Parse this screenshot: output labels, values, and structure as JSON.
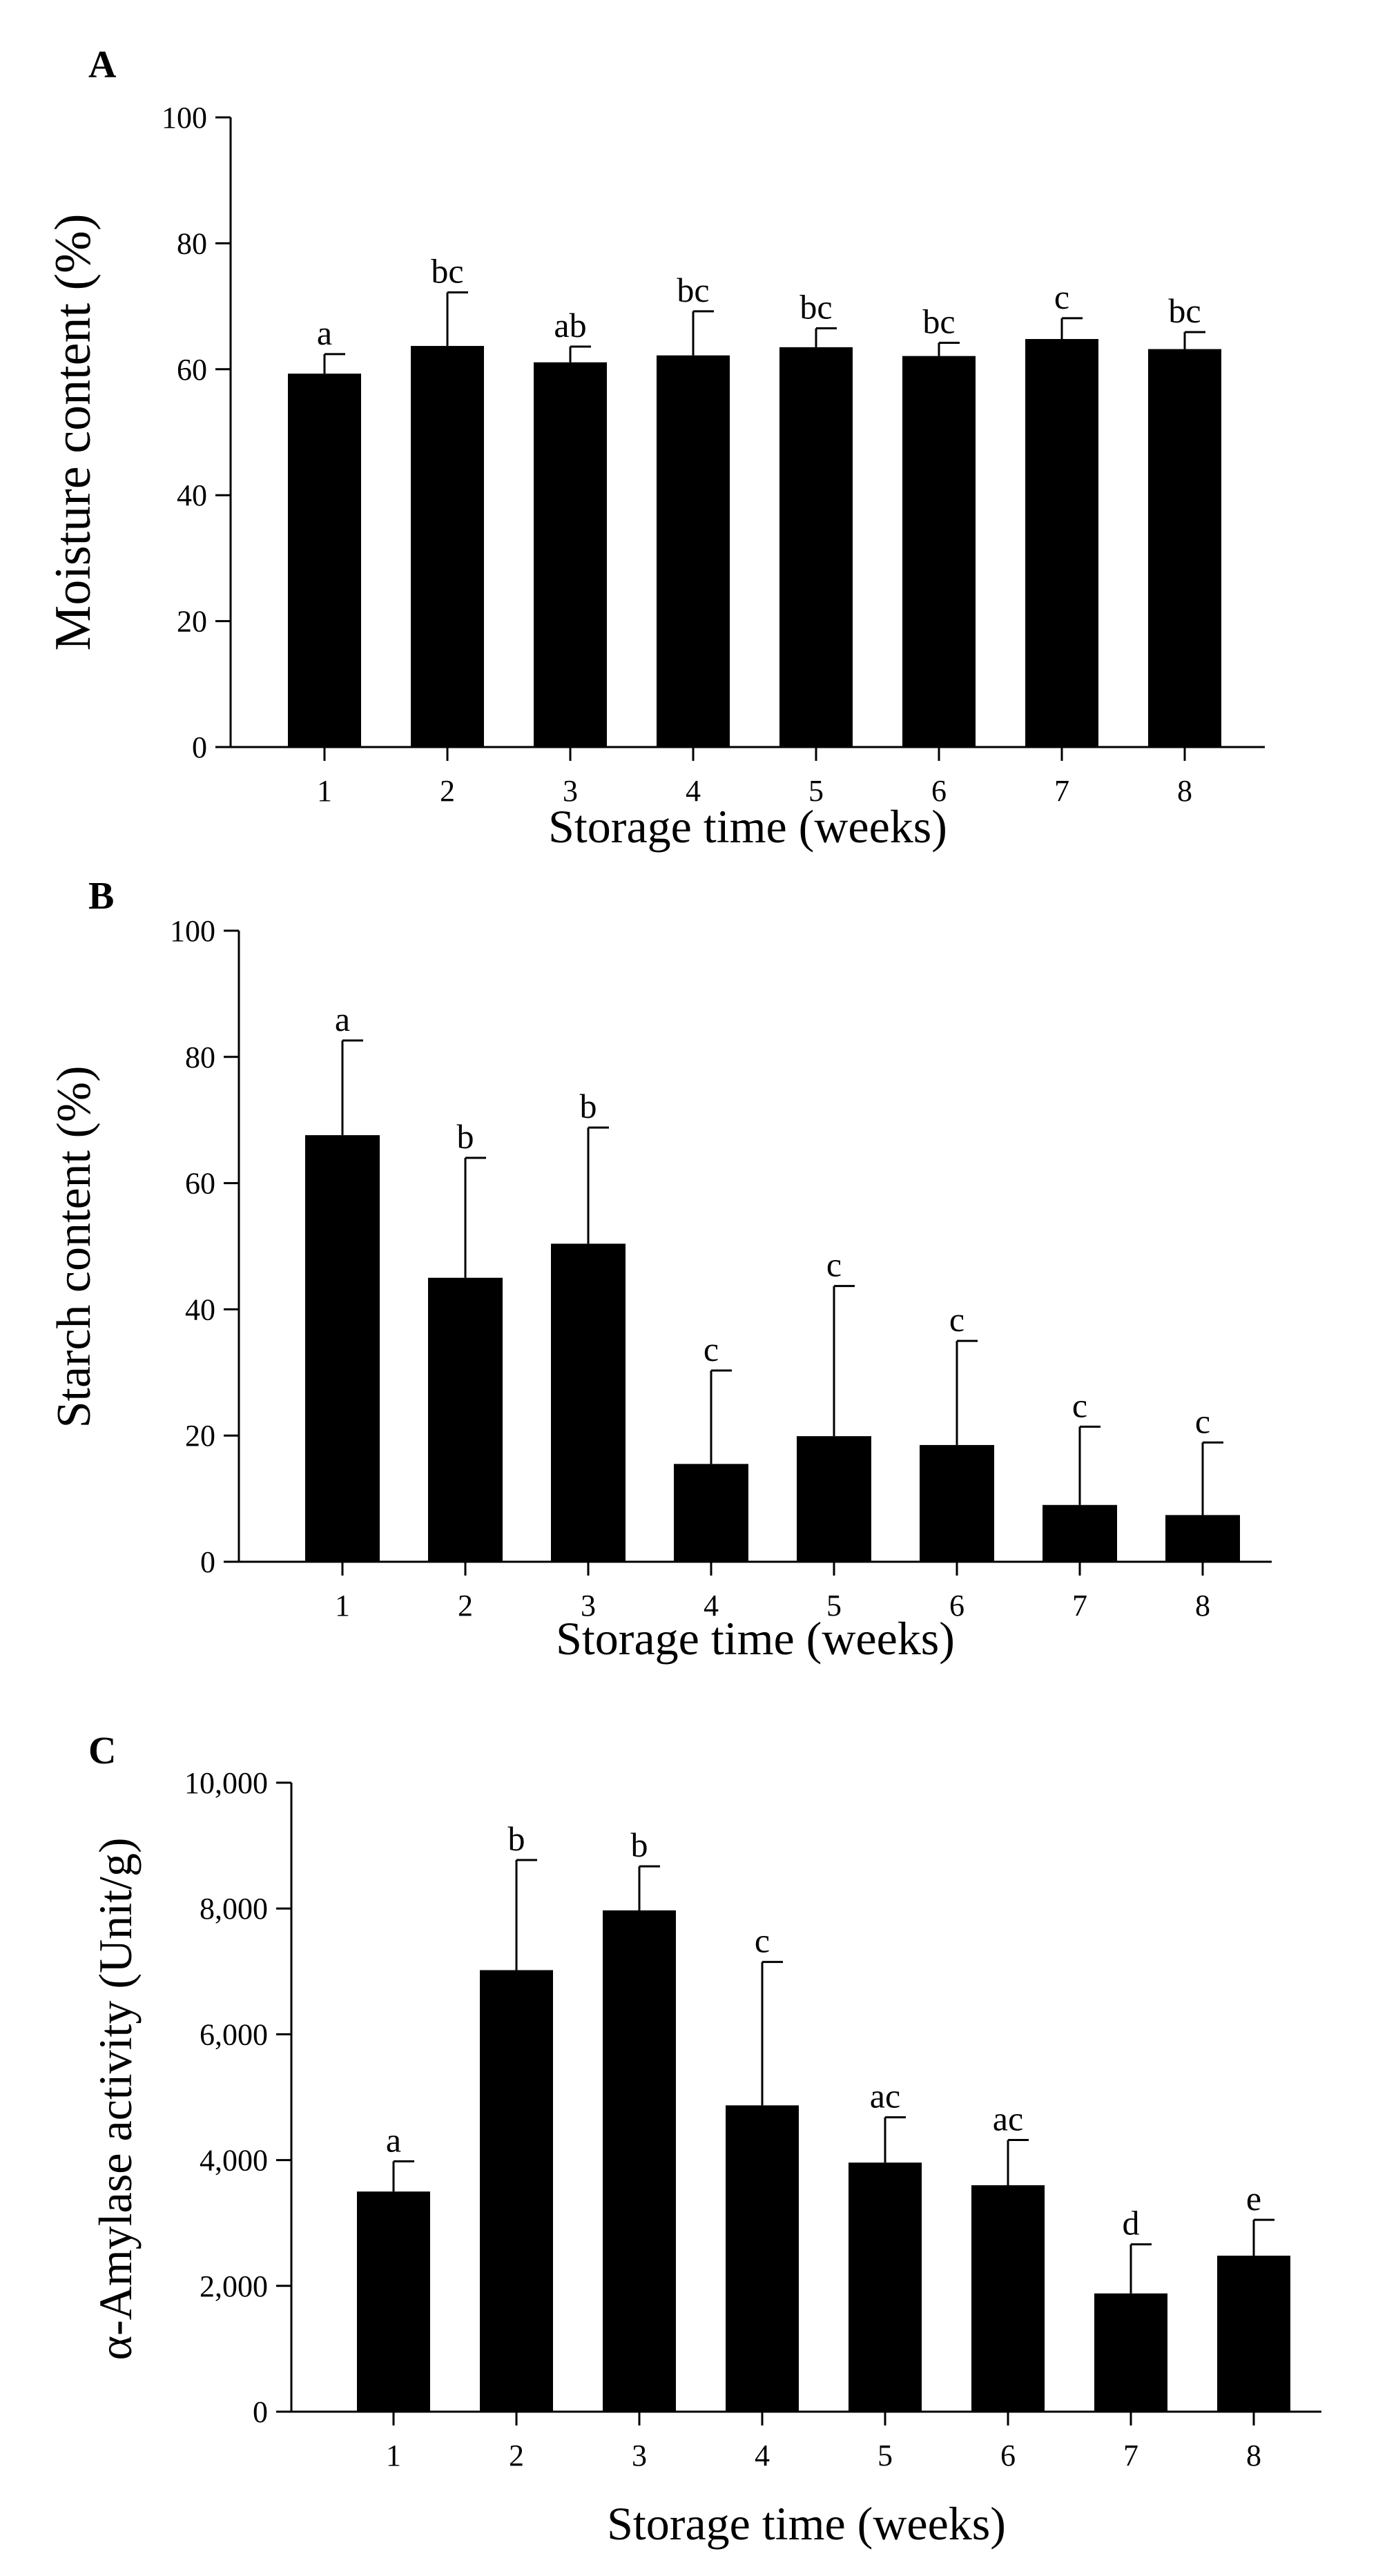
{
  "chart_data": [
    {
      "type": "bar",
      "panel_label": "A",
      "title": "",
      "xlabel": "Storage time (weeks)",
      "ylabel": "Moisture content (%)",
      "ylim": [
        0,
        100
      ],
      "yticks": [
        0,
        20,
        40,
        60,
        80,
        100
      ],
      "ytick_labels": [
        "0",
        "20",
        "40",
        "60",
        "80",
        "100"
      ],
      "categories": [
        "1",
        "2",
        "3",
        "4",
        "5",
        "6",
        "7",
        "8"
      ],
      "values": [
        59.3,
        63.7,
        61.1,
        62.2,
        63.5,
        62.1,
        64.8,
        63.2
      ],
      "errors": [
        3.1,
        8.5,
        2.5,
        7.0,
        3.0,
        2.1,
        3.3,
        2.7
      ],
      "letters": [
        "a",
        "bc",
        "ab",
        "bc",
        "bc",
        "bc",
        "c",
        "bc"
      ],
      "grid": false
    },
    {
      "type": "bar",
      "panel_label": "B",
      "title": "",
      "xlabel": "Storage time (weeks)",
      "ylabel": "Starch content (%)",
      "ylim": [
        0,
        100
      ],
      "yticks": [
        0,
        20,
        40,
        60,
        80,
        100
      ],
      "ytick_labels": [
        "0",
        "20",
        "40",
        "60",
        "80",
        "100"
      ],
      "categories": [
        "1",
        "2",
        "3",
        "4",
        "5",
        "6",
        "7",
        "8"
      ],
      "values": [
        67.6,
        45.0,
        50.4,
        15.5,
        19.9,
        18.5,
        9.0,
        7.4
      ],
      "errors": [
        15.0,
        19.0,
        18.4,
        14.8,
        23.8,
        16.5,
        12.4,
        11.5
      ],
      "letters": [
        "a",
        "b",
        "b",
        "c",
        "c",
        "c",
        "c",
        "c"
      ],
      "grid": false
    },
    {
      "type": "bar",
      "panel_label": "C",
      "title": "",
      "xlabel": "Storage time (weeks)",
      "ylabel": "α-Amylase activity (Unit/g)",
      "ylim": [
        0,
        10000
      ],
      "yticks": [
        0,
        2000,
        4000,
        6000,
        8000,
        10000
      ],
      "ytick_labels": [
        "0",
        "2,000",
        "4,000",
        "6,000",
        "8,000",
        "10,000"
      ],
      "categories": [
        "1",
        "2",
        "3",
        "4",
        "5",
        "6",
        "7",
        "8"
      ],
      "values": [
        3500,
        7020,
        7970,
        4870,
        3960,
        3600,
        1880,
        2480
      ],
      "errors": [
        480,
        1750,
        700,
        2280,
        720,
        720,
        780,
        570
      ],
      "letters": [
        "a",
        "b",
        "b",
        "c",
        "ac",
        "ac",
        "d",
        "e"
      ],
      "grid": false
    }
  ]
}
